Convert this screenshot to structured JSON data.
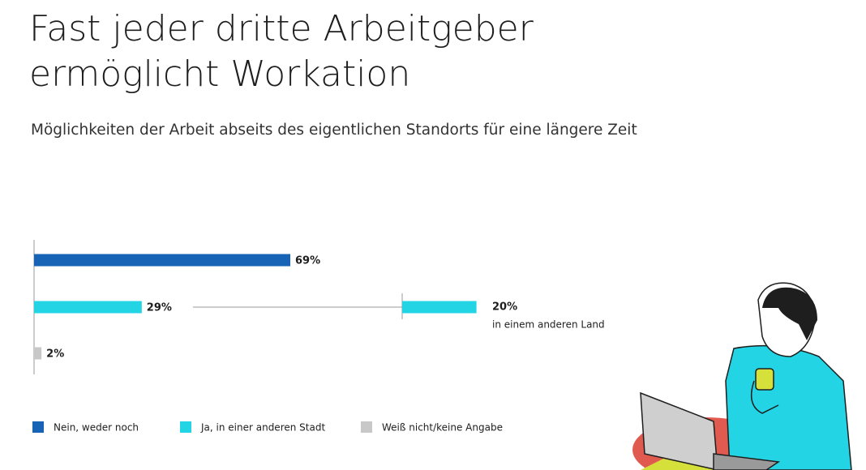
{
  "chart_data": {
    "type": "bar",
    "orientation": "horizontal",
    "title": "Fast jeder dritte Arbeitgeber ermöglicht Workation",
    "subtitle": "Möglichkeiten der Arbeit abseits des eigentlichen Standorts für eine längere Zeit",
    "categories": [
      "Nein, weder noch",
      "Ja, in einer anderen Stadt",
      "Weiß nicht/keine Angabe"
    ],
    "values": [
      69,
      29,
      2
    ],
    "value_labels": [
      "69%",
      "29%",
      "2%"
    ],
    "colors": [
      "#1763b5",
      "#22d4e4",
      "#c8c8c8"
    ],
    "breakout": {
      "value": 20,
      "value_label": "20%",
      "label": "in einem anderen Land",
      "color": "#22d4e4"
    }
  }
}
